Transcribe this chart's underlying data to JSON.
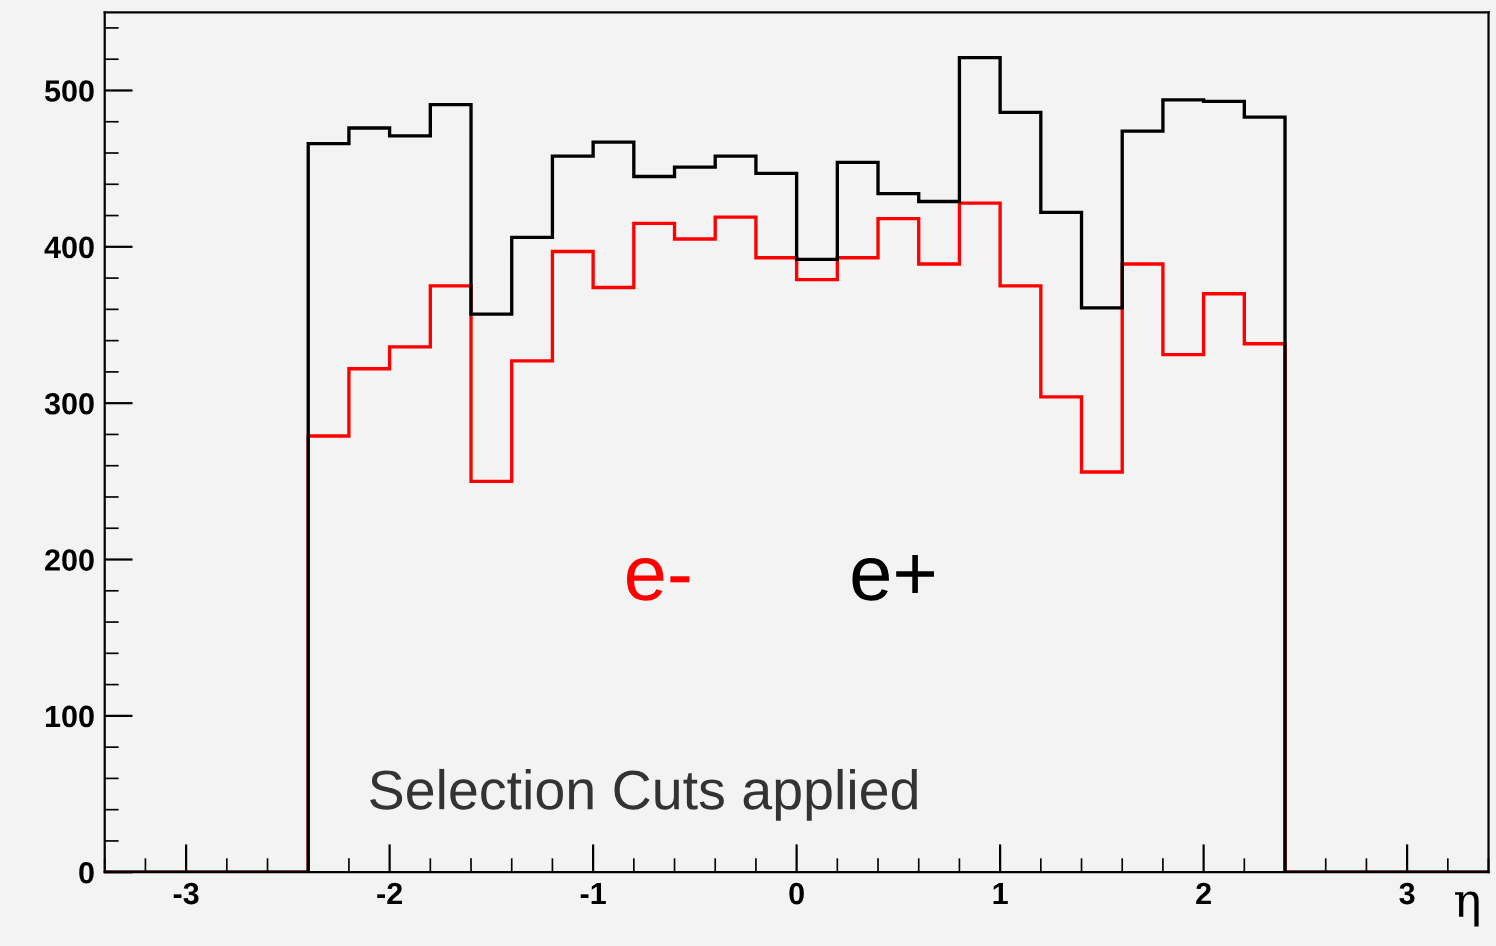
{
  "chart_data": {
    "type": "histogram",
    "xlabel": "η",
    "bins": [
      -3.4,
      -3.2,
      -3.0,
      -2.8,
      -2.6,
      -2.4,
      -2.2,
      -2.0,
      -1.8,
      -1.6,
      -1.4,
      -1.2,
      -1.0,
      -0.8,
      -0.6,
      -0.4,
      -0.2,
      0.0,
      0.2,
      0.4,
      0.6,
      0.8,
      1.0,
      1.2,
      1.4,
      1.6,
      1.8,
      2.0,
      2.2,
      2.4,
      2.6,
      2.8,
      3.0,
      3.2,
      3.4
    ],
    "series": [
      {
        "name": "e-",
        "color": "#ff0000",
        "values": [
          0,
          0,
          0,
          0,
          0,
          279,
          322,
          336,
          375,
          250,
          327,
          397,
          374,
          415,
          405,
          419,
          393,
          379,
          393,
          418,
          389,
          428,
          375,
          304,
          256,
          389,
          331,
          370,
          338,
          0,
          0,
          0,
          0,
          0
        ]
      },
      {
        "name": "e+",
        "color": "#000000",
        "values": [
          0,
          0,
          0,
          0,
          0,
          466,
          476,
          471,
          491,
          357,
          406,
          458,
          467,
          445,
          451,
          458,
          447,
          392,
          454,
          434,
          429,
          521,
          486,
          422,
          361,
          474,
          494,
          493,
          483,
          0,
          0,
          0,
          0,
          0
        ]
      }
    ],
    "xlim": [
      -3.4,
      3.4
    ],
    "ylim": [
      0,
      550
    ],
    "xticks": [
      -3,
      -2,
      -1,
      0,
      1,
      2,
      3
    ],
    "yticks": [
      0,
      100,
      200,
      300,
      400,
      500
    ],
    "grid": false,
    "legend": false,
    "annotations": [
      "Selection Cuts applied"
    ]
  }
}
